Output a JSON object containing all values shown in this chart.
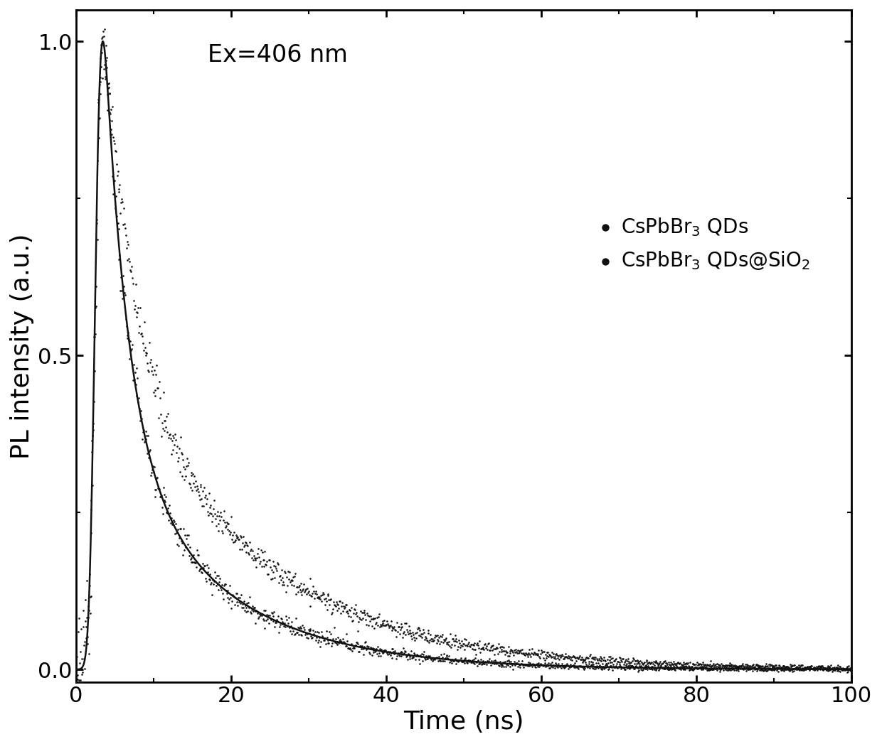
{
  "xlabel": "Time (ns)",
  "ylabel": "PL intensity (a.u.)",
  "annotation": "Ex=406 nm",
  "xlim": [
    0,
    100
  ],
  "ylim": [
    -0.02,
    1.05
  ],
  "xticks": [
    0,
    20,
    40,
    60,
    80,
    100
  ],
  "yticks": [
    0.0,
    0.5,
    1.0
  ],
  "legend_labels": [
    "CsPbBr$_3$ QDs",
    "CsPbBr$_3$ QDs@SiO$_2$"
  ],
  "dot_color": "#111111",
  "fit_color": "#111111",
  "background_color": "#ffffff",
  "scatter_size": 3.5,
  "fit_linewidth": 1.8,
  "axis_linewidth": 2.0,
  "tick_labelsize": 22,
  "axis_labelsize": 26,
  "legend_fontsize": 20,
  "annotation_fontsize": 24,
  "decay1_tau1": 3.0,
  "decay1_A1": 0.7,
  "decay1_tau2": 14.0,
  "decay1_A2": 0.3,
  "decay2_tau1": 3.5,
  "decay2_A1": 0.55,
  "decay2_tau2": 18.0,
  "decay2_A2": 0.45,
  "irf_sigma": 0.6,
  "irf_t0": 0.5,
  "noise_scale1": 0.025,
  "noise_scale2": 0.022,
  "n_points": 1200
}
